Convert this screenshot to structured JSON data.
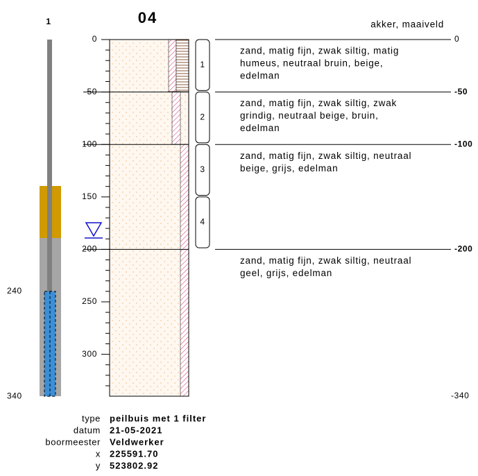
{
  "well": {
    "number": "1",
    "filter_top": 240,
    "filter_bottom": 340
  },
  "title": "04",
  "surface": "akker, maaiveld",
  "depth_axis": {
    "ticks": [
      0,
      50,
      100,
      150,
      200,
      250,
      300
    ],
    "bottom_label": -340
  },
  "layers": [
    {
      "top": 0,
      "description": [
        "zand, matig fijn, zwak siltig, matig",
        "humeus, neutraal bruin, beige,",
        "edelman"
      ]
    },
    {
      "top": -50,
      "description": [
        "zand, matig fijn, zwak siltig, zwak",
        "grindig, neutraal beige, bruin,",
        "edelman"
      ]
    },
    {
      "top": -100,
      "description": [
        "zand, matig fijn, zwak siltig, neutraal",
        "beige, grijs, edelman"
      ]
    },
    {
      "top": -200,
      "description": [
        "zand, matig fijn, zwak siltig, neutraal",
        "geel, grijs, edelman"
      ]
    }
  ],
  "samples": [
    "1",
    "2",
    "3",
    "4"
  ],
  "meta": [
    {
      "label": "type",
      "value": "peilbuis met 1 filter"
    },
    {
      "label": "datum",
      "value": "21-05-2021"
    },
    {
      "label": "boormeester",
      "value": "Veldwerker"
    },
    {
      "label": "x",
      "value": "225591.70"
    },
    {
      "label": "y",
      "value": "523802.92"
    }
  ]
}
